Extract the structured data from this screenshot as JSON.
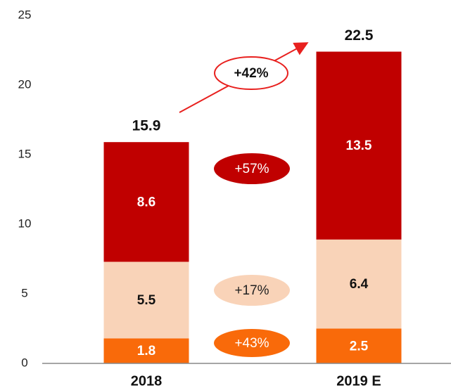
{
  "chart_data": {
    "type": "bar",
    "categories": [
      "2018",
      "2019 E"
    ],
    "series": [
      {
        "color": "#f96a0a",
        "values": [
          1.8,
          2.5
        ]
      },
      {
        "color": "#f9d3b8",
        "values": [
          5.5,
          6.4
        ]
      },
      {
        "color": "#c00000",
        "values": [
          8.6,
          13.5
        ]
      }
    ],
    "totals": [
      15.9,
      22.5
    ],
    "ylim": [
      0,
      25
    ],
    "yticks": [
      0,
      5,
      10,
      15,
      20,
      25
    ],
    "annotations": [
      "+42%",
      "+57%",
      "+17%",
      "+43%"
    ]
  }
}
